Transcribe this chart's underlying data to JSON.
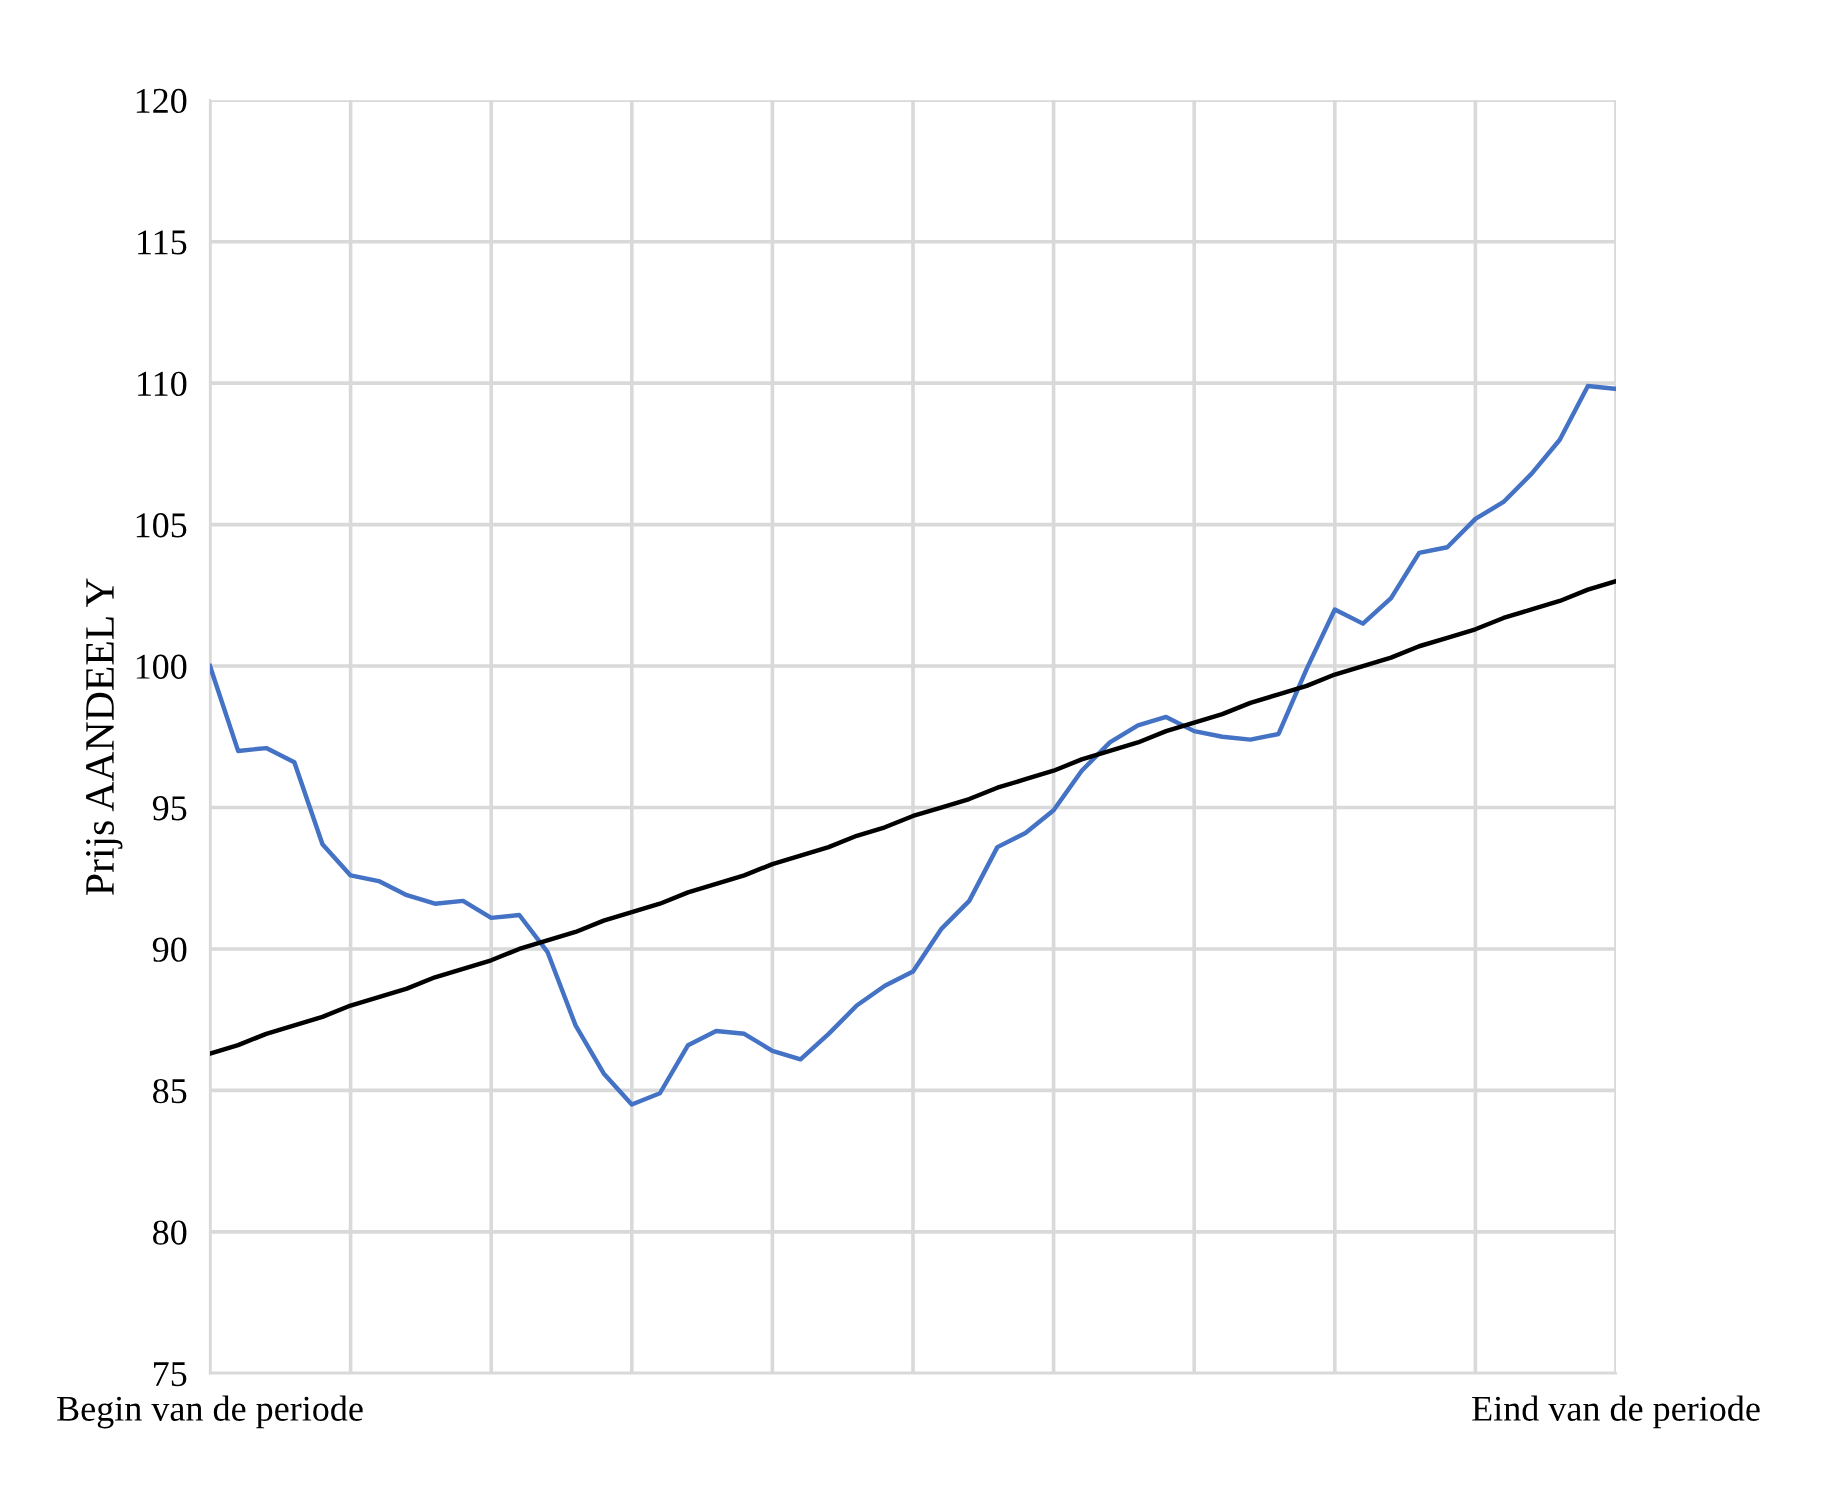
{
  "chart_data": {
    "type": "line",
    "ylabel": "Prijs AANDEEL Y",
    "ylim": [
      75,
      120
    ],
    "yticks": [
      75,
      80,
      85,
      90,
      95,
      100,
      105,
      110,
      115,
      120
    ],
    "categories": [
      "Begin van de periode",
      null,
      null,
      null,
      null,
      null,
      null,
      null,
      null,
      null,
      null,
      null,
      null,
      null,
      null,
      null,
      null,
      null,
      null,
      null,
      null,
      null,
      null,
      null,
      null,
      null,
      null,
      null,
      null,
      null,
      null,
      null,
      null,
      null,
      null,
      null,
      null,
      null,
      null,
      null,
      null,
      null,
      null,
      null,
      null,
      null,
      null,
      null,
      null,
      null,
      "Eind van de periode"
    ],
    "grid": true,
    "marker": "none",
    "line_style": "solid",
    "series": [
      {
        "color": "#4472c4",
        "values": [
          100,
          97.0,
          97.1,
          96.6,
          93.7,
          92.6,
          92.4,
          91.9,
          91.6,
          91.7,
          91.1,
          91.2,
          89.9,
          87.3,
          85.6,
          84.5,
          84.9,
          86.6,
          87.1,
          87.0,
          86.4,
          86.1,
          87.0,
          88.0,
          88.7,
          89.2,
          90.7,
          91.7,
          93.6,
          94.1,
          94.9,
          96.3,
          97.3,
          97.9,
          98.2,
          97.7,
          97.5,
          97.4,
          97.6,
          99.9,
          102.0,
          101.5,
          102.4,
          104.0,
          104.2,
          105.2,
          105.8,
          106.8,
          108.0,
          109.9,
          109.8
        ]
      },
      {
        "color": "#000000",
        "values": [
          86.3,
          86.6,
          87.0,
          87.3,
          87.6,
          88.0,
          88.3,
          88.6,
          89.0,
          89.3,
          89.6,
          90.0,
          90.3,
          90.6,
          91.0,
          91.3,
          91.6,
          92.0,
          92.3,
          92.6,
          93.0,
          93.3,
          93.6,
          94.0,
          94.3,
          94.7,
          95.0,
          95.3,
          95.7,
          96.0,
          96.3,
          96.7,
          97.0,
          97.3,
          97.7,
          98.0,
          98.3,
          98.7,
          99.0,
          99.3,
          99.7,
          100.0,
          100.3,
          100.7,
          101.0,
          101.3,
          101.7,
          102.0,
          102.3,
          102.7,
          103.0
        ]
      }
    ]
  }
}
